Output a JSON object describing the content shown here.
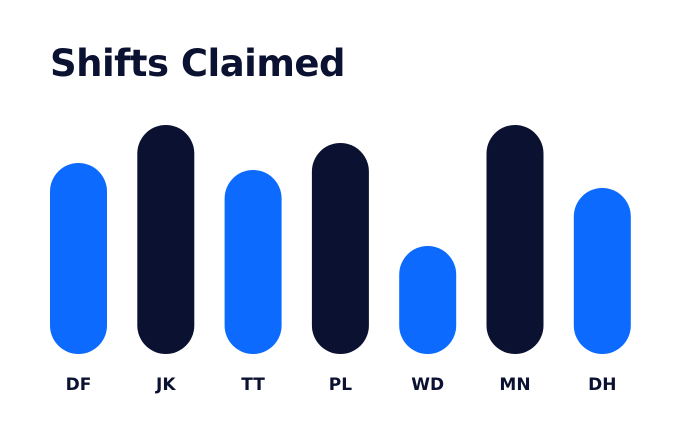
{
  "chart_data": {
    "type": "bar",
    "title": "Shifts Claimed",
    "xlabel": "",
    "ylabel": "",
    "categories": [
      "DF",
      "JK",
      "TT",
      "PL",
      "WD",
      "MN",
      "DH"
    ],
    "values": [
      191,
      229,
      184,
      211,
      108,
      229,
      166
    ],
    "ylim": [
      0,
      229
    ],
    "grid": false,
    "legend": "none",
    "colors": {
      "blue": "#0c6bfe",
      "navy": "#0b1131"
    },
    "bar_colors": [
      "blue",
      "navy",
      "blue",
      "navy",
      "blue",
      "navy",
      "blue"
    ]
  }
}
